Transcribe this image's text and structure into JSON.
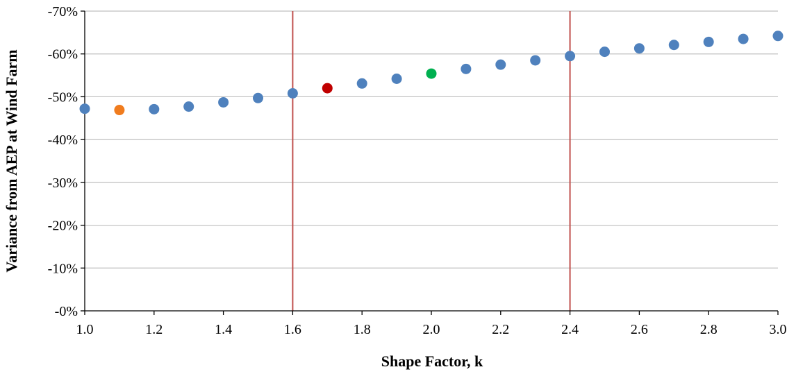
{
  "chart_data": {
    "type": "scatter",
    "title": "",
    "xlabel": "Shape Factor, k",
    "ylabel": "Variance from AEP at Wind Farm",
    "xlim": [
      1.0,
      3.0
    ],
    "ylim": [
      0,
      -70
    ],
    "x_ticks": [
      1.0,
      1.2,
      1.4,
      1.6,
      1.8,
      2.0,
      2.2,
      2.4,
      2.6,
      2.8,
      3.0
    ],
    "x_tick_labels": [
      "1.0",
      "1.2",
      "1.4",
      "1.6",
      "1.8",
      "2.0",
      "2.2",
      "2.4",
      "2.6",
      "2.8",
      "3.0"
    ],
    "y_ticks": [
      0,
      -10,
      -20,
      -30,
      -40,
      -50,
      -60,
      -70
    ],
    "y_tick_labels": [
      "-0%",
      "-10%",
      "-20%",
      "-30%",
      "-40%",
      "-50%",
      "-60%",
      "-70%"
    ],
    "grid": {
      "horizontal": true,
      "vertical": false
    },
    "vertical_lines": [
      {
        "x": 1.6,
        "color": "#C0504D"
      },
      {
        "x": 2.4,
        "color": "#C0504D"
      }
    ],
    "default_point_color": "#4F81BD",
    "points": [
      {
        "x": 1.0,
        "y": -47.2
      },
      {
        "x": 1.1,
        "y": -46.9,
        "color": "#F07C1E"
      },
      {
        "x": 1.2,
        "y": -47.1
      },
      {
        "x": 1.3,
        "y": -47.7
      },
      {
        "x": 1.4,
        "y": -48.7
      },
      {
        "x": 1.5,
        "y": -49.7
      },
      {
        "x": 1.6,
        "y": -50.8
      },
      {
        "x": 1.7,
        "y": -52.0,
        "color": "#C00000"
      },
      {
        "x": 1.8,
        "y": -53.1
      },
      {
        "x": 1.9,
        "y": -54.2
      },
      {
        "x": 2.0,
        "y": -55.4,
        "color": "#00B050"
      },
      {
        "x": 2.1,
        "y": -56.5
      },
      {
        "x": 2.2,
        "y": -57.5
      },
      {
        "x": 2.3,
        "y": -58.5
      },
      {
        "x": 2.4,
        "y": -59.5
      },
      {
        "x": 2.5,
        "y": -60.5
      },
      {
        "x": 2.6,
        "y": -61.3
      },
      {
        "x": 2.7,
        "y": -62.1
      },
      {
        "x": 2.8,
        "y": -62.8
      },
      {
        "x": 2.9,
        "y": -63.5
      },
      {
        "x": 3.0,
        "y": -64.2
      }
    ]
  }
}
